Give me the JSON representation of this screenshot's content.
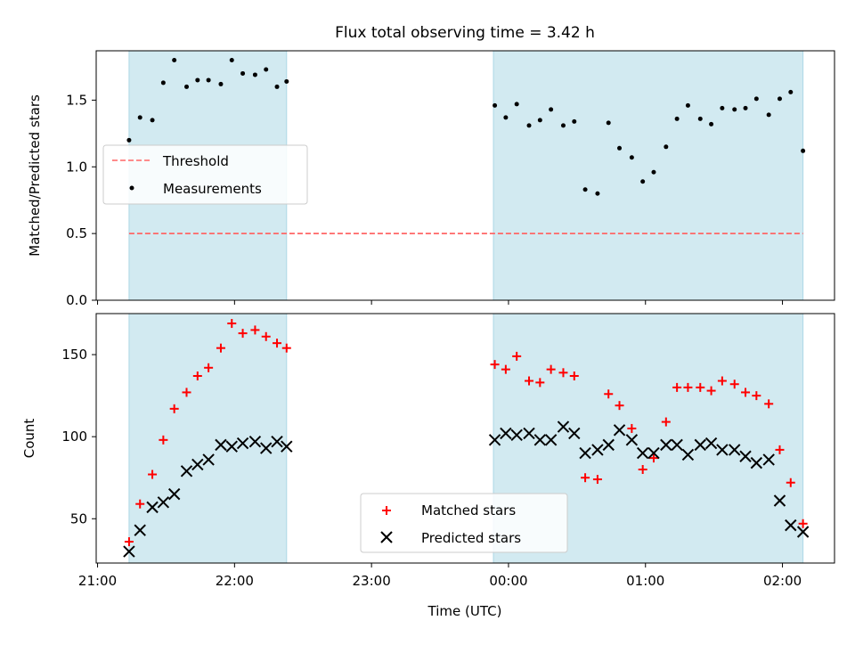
{
  "title": "Flux total observing time = 3.42 h",
  "xlabel": "Time (UTC)",
  "x_ticks": [
    "21:00",
    "22:00",
    "23:00",
    "00:00",
    "01:00",
    "02:00"
  ],
  "x_tick_hours": [
    21,
    22,
    23,
    24,
    25,
    26
  ],
  "xlim": [
    20.99,
    26.38
  ],
  "shaded_spans": [
    [
      21.23,
      22.38
    ],
    [
      23.89,
      26.15
    ]
  ],
  "colors": {
    "shade": "#add8e6",
    "threshold": "#ff6666",
    "measurement": "#000000",
    "matched": "#ff0000",
    "predicted": "#000000"
  },
  "chart_data": [
    {
      "type": "scatter",
      "ylabel": "Matched/Predicted stars",
      "ylim": [
        0,
        1.87
      ],
      "y_ticks": [
        "0.0",
        "0.5",
        "1.0",
        "1.5"
      ],
      "y_tick_values": [
        0,
        0.5,
        1.0,
        1.5
      ],
      "threshold": {
        "value": 0.5,
        "x_range": [
          21.23,
          26.15
        ]
      },
      "legend": {
        "placement": "center-left",
        "threshold_label": "Threshold",
        "measurements_label": "Measurements"
      },
      "series": [
        {
          "name": "Measurements",
          "x": [
            21.23,
            21.31,
            21.4,
            21.48,
            21.56,
            21.65,
            21.73,
            21.81,
            21.9,
            21.98,
            22.06,
            22.15,
            22.23,
            22.31,
            22.38,
            23.9,
            23.98,
            24.06,
            24.15,
            24.23,
            24.31,
            24.4,
            24.48,
            24.56,
            24.65,
            24.73,
            24.81,
            24.9,
            24.98,
            25.06,
            25.15,
            25.23,
            25.31,
            25.4,
            25.48,
            25.56,
            25.65,
            25.73,
            25.81,
            25.9,
            25.98,
            26.06,
            26.15
          ],
          "y": [
            1.2,
            1.37,
            1.35,
            1.63,
            1.8,
            1.6,
            1.65,
            1.65,
            1.62,
            1.8,
            1.7,
            1.69,
            1.73,
            1.6,
            1.64,
            1.46,
            1.37,
            1.47,
            1.31,
            1.35,
            1.43,
            1.31,
            1.34,
            0.83,
            0.8,
            1.33,
            1.14,
            1.07,
            0.89,
            0.96,
            1.15,
            1.36,
            1.46,
            1.36,
            1.32,
            1.44,
            1.43,
            1.44,
            1.51,
            1.39,
            1.51,
            1.56,
            1.12
          ]
        }
      ]
    },
    {
      "type": "scatter",
      "ylabel": "Count",
      "ylim": [
        23,
        175
      ],
      "y_ticks": [
        "50",
        "100",
        "150"
      ],
      "y_tick_values": [
        50,
        100,
        150
      ],
      "legend": {
        "placement": "bottom-center",
        "matched_label": "Matched stars",
        "predicted_label": "Predicted stars"
      },
      "series": [
        {
          "name": "Matched stars",
          "x": [
            21.23,
            21.31,
            21.4,
            21.48,
            21.56,
            21.65,
            21.73,
            21.81,
            21.9,
            21.98,
            22.06,
            22.15,
            22.23,
            22.31,
            22.38,
            23.9,
            23.98,
            24.06,
            24.15,
            24.23,
            24.31,
            24.4,
            24.48,
            24.56,
            24.65,
            24.73,
            24.81,
            24.9,
            24.98,
            25.06,
            25.15,
            25.23,
            25.31,
            25.4,
            25.48,
            25.56,
            25.65,
            25.73,
            25.81,
            25.9,
            25.98,
            26.06,
            26.15
          ],
          "y": [
            36,
            59,
            77,
            98,
            117,
            127,
            137,
            142,
            154,
            169,
            163,
            165,
            161,
            157,
            154,
            144,
            141,
            149,
            134,
            133,
            141,
            139,
            137,
            75,
            74,
            126,
            119,
            105,
            80,
            87,
            109,
            130,
            130,
            130,
            128,
            134,
            132,
            127,
            125,
            120,
            92,
            72,
            47
          ]
        },
        {
          "name": "Predicted stars",
          "x": [
            21.23,
            21.31,
            21.4,
            21.48,
            21.56,
            21.65,
            21.73,
            21.81,
            21.9,
            21.98,
            22.06,
            22.15,
            22.23,
            22.31,
            22.38,
            23.9,
            23.98,
            24.06,
            24.15,
            24.23,
            24.31,
            24.4,
            24.48,
            24.56,
            24.65,
            24.73,
            24.81,
            24.9,
            24.98,
            25.06,
            25.15,
            25.23,
            25.31,
            25.4,
            25.48,
            25.56,
            25.65,
            25.73,
            25.81,
            25.9,
            25.98,
            26.06,
            26.15
          ],
          "y": [
            30,
            43,
            57,
            60,
            65,
            79,
            83,
            86,
            95,
            94,
            96,
            97,
            93,
            97,
            94,
            98,
            102,
            101,
            102,
            98,
            98,
            106,
            102,
            90,
            92,
            95,
            104,
            98,
            90,
            90,
            95,
            95,
            89,
            95,
            96,
            92,
            92,
            88,
            84,
            86,
            61,
            46,
            42
          ]
        }
      ]
    }
  ]
}
